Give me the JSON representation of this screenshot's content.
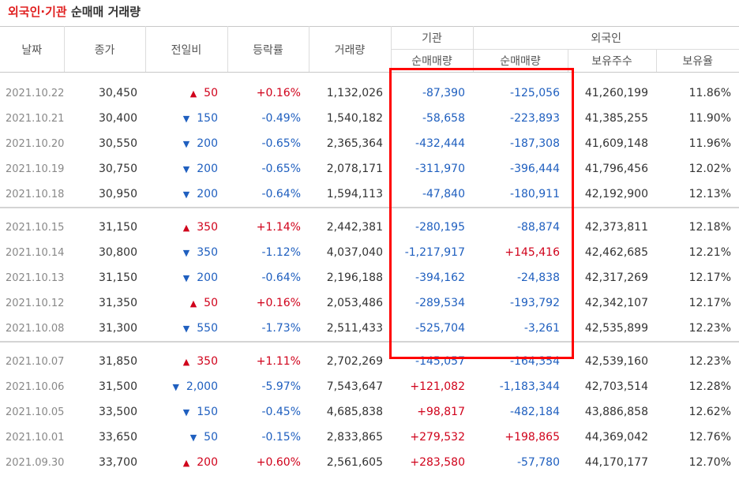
{
  "title": {
    "part1": "외국인",
    "dot": "·",
    "part2": "기관",
    "part3": "순매매 거래량"
  },
  "headers": {
    "date": "날짜",
    "close": "종가",
    "change": "전일비",
    "rate": "등락률",
    "volume": "거래량",
    "inst_group": "기관",
    "foreign_group": "외국인",
    "inst_net": "순매매량",
    "foreign_net": "순매매량",
    "foreign_shares": "보유주수",
    "foreign_ratio": "보유율"
  },
  "colors": {
    "up": "#d0021b",
    "down": "#1f5fbf",
    "highlight": "#ff0000"
  },
  "groups": [
    {
      "rows": [
        {
          "date": "2021.10.22",
          "close": "30,450",
          "dir": "up",
          "change": "50",
          "rate": "+0.16%",
          "volume": "1,132,026",
          "inst": "-87,390",
          "foreign": "-125,056",
          "shares": "41,260,199",
          "ratio": "11.86%"
        },
        {
          "date": "2021.10.21",
          "close": "30,400",
          "dir": "down",
          "change": "150",
          "rate": "-0.49%",
          "volume": "1,540,182",
          "inst": "-58,658",
          "foreign": "-223,893",
          "shares": "41,385,255",
          "ratio": "11.90%"
        },
        {
          "date": "2021.10.20",
          "close": "30,550",
          "dir": "down",
          "change": "200",
          "rate": "-0.65%",
          "volume": "2,365,364",
          "inst": "-432,444",
          "foreign": "-187,308",
          "shares": "41,609,148",
          "ratio": "11.96%"
        },
        {
          "date": "2021.10.19",
          "close": "30,750",
          "dir": "down",
          "change": "200",
          "rate": "-0.65%",
          "volume": "2,078,171",
          "inst": "-311,970",
          "foreign": "-396,444",
          "shares": "41,796,456",
          "ratio": "12.02%"
        },
        {
          "date": "2021.10.18",
          "close": "30,950",
          "dir": "down",
          "change": "200",
          "rate": "-0.64%",
          "volume": "1,594,113",
          "inst": "-47,840",
          "foreign": "-180,911",
          "shares": "42,192,900",
          "ratio": "12.13%"
        }
      ]
    },
    {
      "rows": [
        {
          "date": "2021.10.15",
          "close": "31,150",
          "dir": "up",
          "change": "350",
          "rate": "+1.14%",
          "volume": "2,442,381",
          "inst": "-280,195",
          "foreign": "-88,874",
          "shares": "42,373,811",
          "ratio": "12.18%"
        },
        {
          "date": "2021.10.14",
          "close": "30,800",
          "dir": "down",
          "change": "350",
          "rate": "-1.12%",
          "volume": "4,037,040",
          "inst": "-1,217,917",
          "foreign": "+145,416",
          "shares": "42,462,685",
          "ratio": "12.21%"
        },
        {
          "date": "2021.10.13",
          "close": "31,150",
          "dir": "down",
          "change": "200",
          "rate": "-0.64%",
          "volume": "2,196,188",
          "inst": "-394,162",
          "foreign": "-24,838",
          "shares": "42,317,269",
          "ratio": "12.17%"
        },
        {
          "date": "2021.10.12",
          "close": "31,350",
          "dir": "up",
          "change": "50",
          "rate": "+0.16%",
          "volume": "2,053,486",
          "inst": "-289,534",
          "foreign": "-193,792",
          "shares": "42,342,107",
          "ratio": "12.17%"
        },
        {
          "date": "2021.10.08",
          "close": "31,300",
          "dir": "down",
          "change": "550",
          "rate": "-1.73%",
          "volume": "2,511,433",
          "inst": "-525,704",
          "foreign": "-3,261",
          "shares": "42,535,899",
          "ratio": "12.23%"
        }
      ]
    },
    {
      "rows": [
        {
          "date": "2021.10.07",
          "close": "31,850",
          "dir": "up",
          "change": "350",
          "rate": "+1.11%",
          "volume": "2,702,269",
          "inst": "-145,057",
          "foreign": "-164,354",
          "shares": "42,539,160",
          "ratio": "12.23%"
        },
        {
          "date": "2021.10.06",
          "close": "31,500",
          "dir": "down",
          "change": "2,000",
          "rate": "-5.97%",
          "volume": "7,543,647",
          "inst": "+121,082",
          "foreign": "-1,183,344",
          "shares": "42,703,514",
          "ratio": "12.28%"
        },
        {
          "date": "2021.10.05",
          "close": "33,500",
          "dir": "down",
          "change": "150",
          "rate": "-0.45%",
          "volume": "4,685,838",
          "inst": "+98,817",
          "foreign": "-482,184",
          "shares": "43,886,858",
          "ratio": "12.62%"
        },
        {
          "date": "2021.10.01",
          "close": "33,650",
          "dir": "down",
          "change": "50",
          "rate": "-0.15%",
          "volume": "2,833,865",
          "inst": "+279,532",
          "foreign": "+198,865",
          "shares": "44,369,042",
          "ratio": "12.76%"
        },
        {
          "date": "2021.09.30",
          "close": "33,700",
          "dir": "up",
          "change": "200",
          "rate": "+0.60%",
          "volume": "2,561,605",
          "inst": "+283,580",
          "foreign": "-57,780",
          "shares": "44,170,177",
          "ratio": "12.70%"
        }
      ]
    }
  ]
}
